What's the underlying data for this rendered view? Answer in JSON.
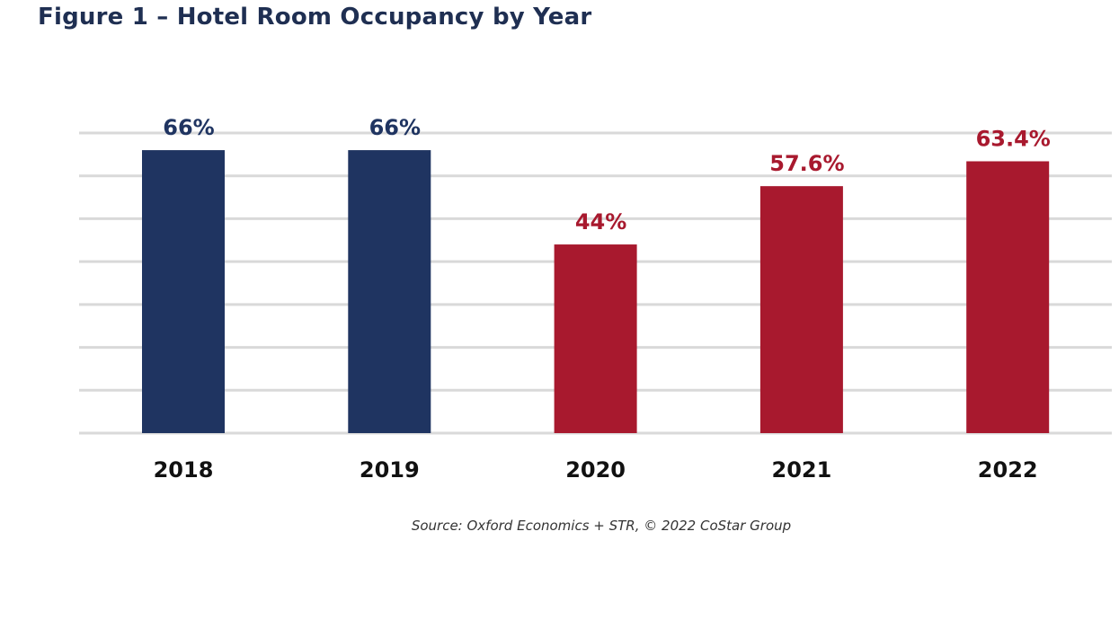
{
  "chart_data": {
    "type": "bar",
    "title": "Figure 1 – Hotel Room Occupancy by Year",
    "categories": [
      "2018",
      "2019",
      "2020",
      "2021",
      "2022"
    ],
    "values": [
      66,
      66,
      44,
      57.6,
      63.4
    ],
    "data_labels": [
      "66%",
      "66%",
      "44%",
      "57.6%",
      "63.4%"
    ],
    "bar_colors": [
      "#1f3461",
      "#1f3461",
      "#a8192e",
      "#a8192e",
      "#a8192e"
    ],
    "xlabel": "",
    "ylabel": "",
    "ylim": [
      0,
      70
    ],
    "y_grid_step": 10,
    "grid": true,
    "y_tick_labels_shown": false,
    "source": "Source: Oxford Economics + STR, © 2022 CoStar Group"
  }
}
